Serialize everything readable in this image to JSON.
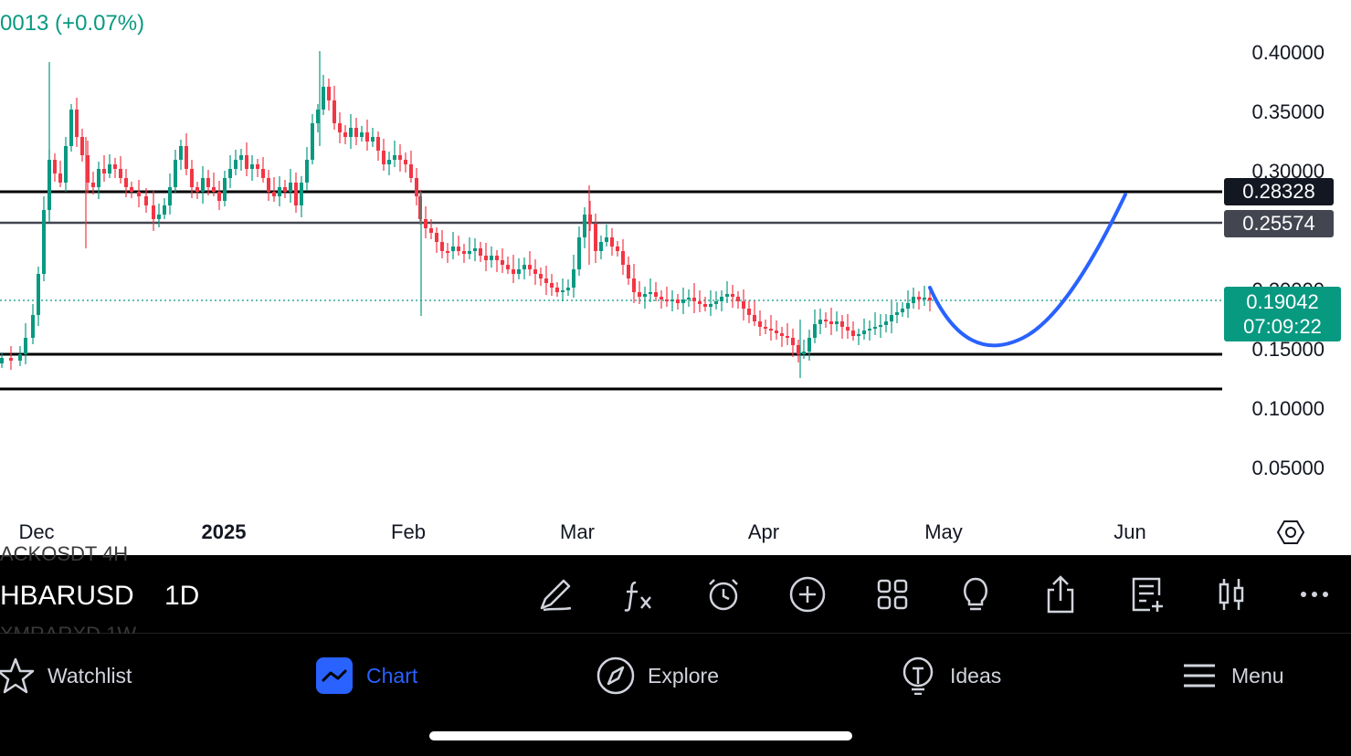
{
  "chart": {
    "change_text": "0013 (+0.07%)",
    "y_ticks": [
      "0.40000",
      "0.35000",
      "0.30000",
      "0.20000",
      "0.15000",
      "0.10000",
      "0.05000"
    ],
    "x_ticks": [
      {
        "label": "Dec",
        "bold": false
      },
      {
        "label": "2025",
        "bold": true
      },
      {
        "label": "Feb",
        "bold": false
      },
      {
        "label": "Mar",
        "bold": false
      },
      {
        "label": "Apr",
        "bold": false
      },
      {
        "label": "May",
        "bold": false
      },
      {
        "label": "Jun",
        "bold": false
      }
    ],
    "level_labels": {
      "resistance_top": "0.28328",
      "resistance_low": "0.25574"
    },
    "last_price": "0.19042",
    "countdown": "07:09:22",
    "colors": {
      "up": "#089981",
      "down": "#f23645",
      "projection": "#2962ff",
      "level_line": "#000000",
      "level_line_gray": "#434651"
    }
  },
  "toolbar": {
    "ghost_top": "ACKOSDT 4H",
    "ghost_bottom": "XMRARXD 1W",
    "symbol": "HBARUSD",
    "interval": "1D",
    "icons": [
      "draw-icon",
      "indicators-icon",
      "alert-icon",
      "add-icon",
      "layout-icon",
      "ideas-bulb-icon",
      "share-icon",
      "watchlist-add-icon",
      "candle-type-icon",
      "more-icon"
    ]
  },
  "nav": {
    "watchlist": "Watchlist",
    "chart": "Chart",
    "explore": "Explore",
    "ideas": "Ideas",
    "menu": "Menu"
  }
}
